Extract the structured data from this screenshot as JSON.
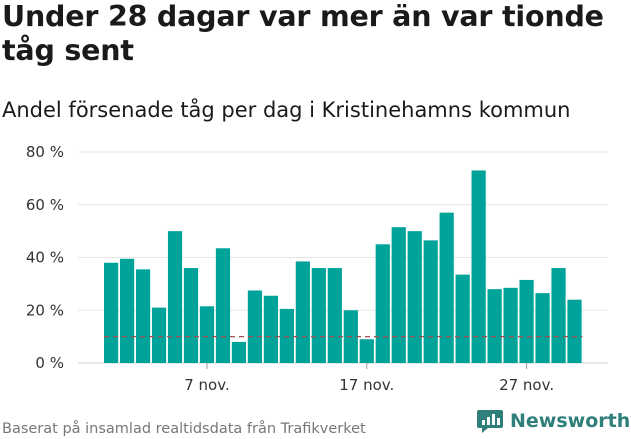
{
  "header": {
    "title": "Under 28 dagar var mer än var tionde tåg sent",
    "subtitle": "Andel försenade tåg per dag i Kristinehamns kommun"
  },
  "footer": {
    "source": "Baserat på insamlad realtidsdata från Trafikverket",
    "brand": "Newsworthy",
    "brand_icon": "newsworthy-logo-icon"
  },
  "colors": {
    "bar": "#00a39a",
    "reference_line": "#a05050",
    "grid": "#e6e6e6",
    "brand": "#2f7f7a"
  },
  "chart_data": {
    "type": "bar",
    "title": "Under 28 dagar var mer än var tionde tåg sent",
    "subtitle": "Andel försenade tåg per dag i Kristinehamns kommun",
    "xlabel": "",
    "ylabel": "",
    "x_start": "1 nov.",
    "days": [
      1,
      2,
      3,
      4,
      5,
      6,
      7,
      8,
      9,
      10,
      11,
      12,
      13,
      14,
      15,
      16,
      17,
      18,
      19,
      20,
      21,
      22,
      23,
      24,
      25,
      26,
      27,
      28,
      29,
      30
    ],
    "values": [
      38,
      39.5,
      35.5,
      21,
      50,
      36,
      21.5,
      43.5,
      8,
      27.5,
      25.5,
      20.5,
      38.5,
      36,
      36,
      20,
      9,
      45,
      51.5,
      50,
      46.5,
      57,
      33.5,
      73,
      28,
      28.5,
      31.5,
      26.5,
      36,
      24
    ],
    "x_tick_labels": [
      {
        "day": 7,
        "label": "7 nov."
      },
      {
        "day": 17,
        "label": "17 nov."
      },
      {
        "day": 27,
        "label": "27 nov."
      }
    ],
    "y_ticks": [
      0,
      20,
      40,
      60,
      80
    ],
    "y_tick_labels": [
      "0 %",
      "20 %",
      "40 %",
      "60 %",
      "80 %"
    ],
    "ylim": [
      0,
      80
    ],
    "reference_line": 10,
    "grid": true,
    "unit": "%"
  }
}
